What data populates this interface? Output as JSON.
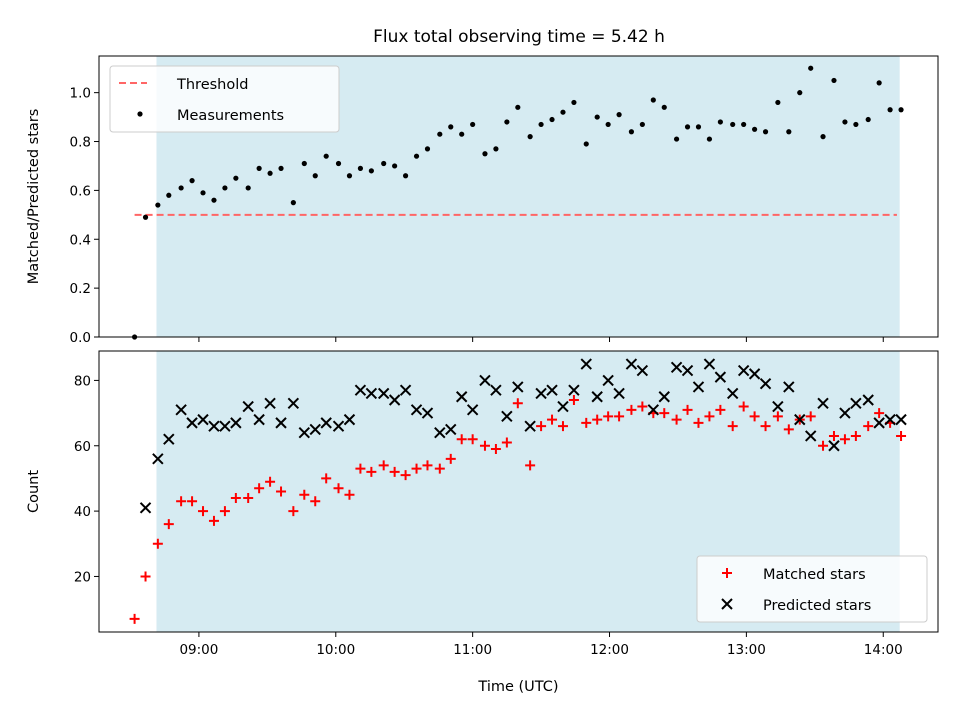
{
  "title": "Flux total observing time = 5.42 h",
  "colors": {
    "shade": "#add8e6",
    "threshold": "#ff6666",
    "measurement": "#000000",
    "matched": "#ff0000",
    "predicted": "#000000"
  },
  "chart_data": [
    {
      "type": "scatter",
      "ylabel": "Matched/Predicted stars",
      "ylim": [
        0,
        1.15
      ],
      "yticks": [
        "0.0",
        "0.2",
        "0.4",
        "0.6",
        "0.8",
        "1.0"
      ],
      "xlim_hours": [
        8.27,
        14.4
      ],
      "shaded_span_hours": [
        8.69,
        14.12
      ],
      "legend": {
        "position": "top-left",
        "entries": [
          "Threshold",
          "Measurements"
        ]
      },
      "threshold": {
        "name": "Threshold",
        "value": 0.5,
        "x_start_hours": 8.53,
        "x_end_hours": 14.1
      },
      "series": [
        {
          "name": "Measurements",
          "marker": "dot",
          "x_hours": [
            8.53,
            8.61,
            8.7,
            8.78,
            8.87,
            8.95,
            9.03,
            9.11,
            9.19,
            9.27,
            9.36,
            9.44,
            9.52,
            9.6,
            9.69,
            9.77,
            9.85,
            9.93,
            10.02,
            10.1,
            10.18,
            10.26,
            10.35,
            10.43,
            10.51,
            10.59,
            10.67,
            10.76,
            10.84,
            10.92,
            11.0,
            11.09,
            11.17,
            11.25,
            11.33,
            11.42,
            11.5,
            11.58,
            11.66,
            11.74,
            11.83,
            11.91,
            11.99,
            12.07,
            12.16,
            12.24,
            12.32,
            12.4,
            12.49,
            12.57,
            12.65,
            12.73,
            12.81,
            12.9,
            12.98,
            13.06,
            13.14,
            13.23,
            13.31,
            13.39,
            13.47,
            13.56,
            13.64,
            13.72,
            13.8,
            13.89,
            13.97,
            14.05,
            14.13
          ],
          "y": [
            0.0,
            0.49,
            0.54,
            0.58,
            0.61,
            0.64,
            0.59,
            0.56,
            0.61,
            0.65,
            0.61,
            0.69,
            0.67,
            0.69,
            0.55,
            0.71,
            0.66,
            0.74,
            0.71,
            0.66,
            0.69,
            0.68,
            0.71,
            0.7,
            0.66,
            0.74,
            0.77,
            0.83,
            0.86,
            0.83,
            0.87,
            0.75,
            0.77,
            0.88,
            0.94,
            0.82,
            0.87,
            0.89,
            0.92,
            0.96,
            0.79,
            0.9,
            0.87,
            0.91,
            0.84,
            0.87,
            0.97,
            0.94,
            0.81,
            0.86,
            0.86,
            0.81,
            0.88,
            0.87,
            0.87,
            0.85,
            0.84,
            0.96,
            0.84,
            1.0,
            1.1,
            0.82,
            1.05,
            0.88,
            0.87,
            0.89,
            1.04,
            0.93,
            0.93
          ]
        }
      ]
    },
    {
      "type": "scatter",
      "xlabel": "Time (UTC)",
      "ylabel": "Count",
      "ylim": [
        3,
        89
      ],
      "yticks": [
        "20",
        "40",
        "60",
        "80"
      ],
      "xlim_hours": [
        8.27,
        14.4
      ],
      "xticks": [
        "09:00",
        "10:00",
        "11:00",
        "12:00",
        "13:00",
        "14:00"
      ],
      "shaded_span_hours": [
        8.69,
        14.12
      ],
      "legend": {
        "position": "bottom-right",
        "entries": [
          "Matched stars",
          "Predicted stars"
        ]
      },
      "series": [
        {
          "name": "Matched stars",
          "marker": "plus",
          "x_hours": [
            8.53,
            8.61,
            8.7,
            8.78,
            8.87,
            8.95,
            9.03,
            9.11,
            9.19,
            9.27,
            9.36,
            9.44,
            9.52,
            9.6,
            9.69,
            9.77,
            9.85,
            9.93,
            10.02,
            10.1,
            10.18,
            10.26,
            10.35,
            10.43,
            10.51,
            10.59,
            10.67,
            10.76,
            10.84,
            10.92,
            11.0,
            11.09,
            11.17,
            11.25,
            11.33,
            11.42,
            11.5,
            11.58,
            11.66,
            11.74,
            11.83,
            11.91,
            11.99,
            12.07,
            12.16,
            12.24,
            12.32,
            12.4,
            12.49,
            12.57,
            12.65,
            12.73,
            12.81,
            12.9,
            12.98,
            13.06,
            13.14,
            13.23,
            13.31,
            13.39,
            13.47,
            13.56,
            13.64,
            13.72,
            13.8,
            13.89,
            13.97,
            14.05,
            14.13
          ],
          "y": [
            7,
            20,
            30,
            36,
            43,
            43,
            40,
            37,
            40,
            44,
            44,
            47,
            49,
            46,
            40,
            45,
            43,
            50,
            47,
            45,
            53,
            52,
            54,
            52,
            51,
            53,
            54,
            53,
            56,
            62,
            62,
            60,
            59,
            61,
            73,
            54,
            66,
            68,
            66,
            74,
            67,
            68,
            69,
            69,
            71,
            72,
            70,
            70,
            68,
            71,
            67,
            69,
            71,
            66,
            72,
            69,
            66,
            69,
            65,
            68,
            69,
            60,
            63,
            62,
            63,
            66,
            70,
            67,
            63
          ]
        },
        {
          "name": "Predicted stars",
          "marker": "x",
          "x_hours": [
            8.61,
            8.7,
            8.78,
            8.87,
            8.95,
            9.03,
            9.11,
            9.19,
            9.27,
            9.36,
            9.44,
            9.52,
            9.6,
            9.69,
            9.77,
            9.85,
            9.93,
            10.02,
            10.1,
            10.18,
            10.26,
            10.35,
            10.43,
            10.51,
            10.59,
            10.67,
            10.76,
            10.84,
            10.92,
            11.0,
            11.09,
            11.17,
            11.25,
            11.33,
            11.42,
            11.5,
            11.58,
            11.66,
            11.74,
            11.83,
            11.91,
            11.99,
            12.07,
            12.16,
            12.24,
            12.32,
            12.4,
            12.49,
            12.57,
            12.65,
            12.73,
            12.81,
            12.9,
            12.98,
            13.06,
            13.14,
            13.23,
            13.31,
            13.39,
            13.47,
            13.56,
            13.64,
            13.72,
            13.8,
            13.89,
            13.97,
            14.05,
            14.13
          ],
          "y": [
            41,
            56,
            62,
            71,
            67,
            68,
            66,
            66,
            67,
            72,
            68,
            73,
            67,
            73,
            64,
            65,
            67,
            66,
            68,
            77,
            76,
            76,
            74,
            77,
            71,
            70,
            64,
            65,
            75,
            71,
            80,
            77,
            69,
            78,
            66,
            76,
            77,
            72,
            77,
            85,
            75,
            80,
            76,
            85,
            83,
            71,
            75,
            84,
            83,
            78,
            85,
            81,
            76,
            83,
            82,
            79,
            72,
            78,
            68,
            63,
            73,
            60,
            70,
            73,
            74,
            67,
            68,
            68
          ]
        }
      ]
    }
  ]
}
